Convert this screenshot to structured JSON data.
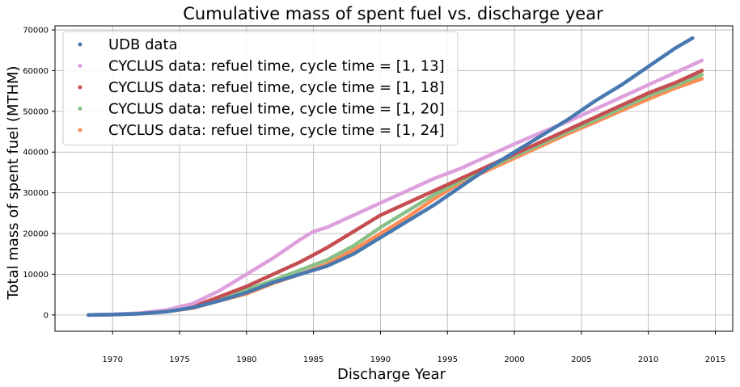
{
  "chart_data": {
    "type": "scatter",
    "title": "Cumulative mass of spent fuel vs. discharge year",
    "xlabel": "Discharge Year",
    "ylabel": "Total mass of spent fuel (MTHM)",
    "xlim": [
      1965.7,
      2016.3
    ],
    "ylim": [
      -4000,
      71000
    ],
    "xticks": [
      1970,
      1975,
      1980,
      1985,
      1990,
      1995,
      2000,
      2005,
      2010,
      2015
    ],
    "yticks": [
      0,
      10000,
      20000,
      30000,
      40000,
      50000,
      60000,
      70000
    ],
    "grid": true,
    "legend_position": "upper-left",
    "series": [
      {
        "name": "UDB data",
        "color": "#4878b0",
        "x": [
          1968.2,
          1970,
          1972,
          1974,
          1976,
          1978,
          1980,
          1982,
          1984,
          1986,
          1988,
          1990,
          1992,
          1994,
          1996,
          1998,
          2000,
          2002,
          2004,
          2006,
          2008,
          2010,
          2012,
          2013.3
        ],
        "y": [
          0,
          100,
          300,
          800,
          1800,
          3500,
          5500,
          8000,
          10000,
          12000,
          15000,
          19000,
          23000,
          27000,
          31500,
          36000,
          40000,
          44000,
          48000,
          52500,
          56500,
          61000,
          65500,
          68000
        ]
      },
      {
        "name": "CYCLUS data: refuel time, cycle time = [1, 13]",
        "color": "#dda0dd",
        "x": [
          1968.2,
          1970,
          1972,
          1974,
          1976,
          1978,
          1980,
          1982,
          1984,
          1985,
          1986,
          1988,
          1990,
          1992,
          1994,
          1996,
          1998,
          2000,
          2002,
          2004,
          2006,
          2008,
          2010,
          2012,
          2014
        ],
        "y": [
          0,
          150,
          450,
          1200,
          2800,
          6000,
          10000,
          14000,
          18500,
          20500,
          21500,
          24500,
          27500,
          30500,
          33500,
          36000,
          39000,
          42000,
          44800,
          47500,
          50500,
          53500,
          56500,
          59500,
          62500
        ]
      },
      {
        "name": "CYCLUS data: refuel time, cycle time = [1, 18]",
        "color": "#c44e52",
        "x": [
          1968.2,
          1970,
          1972,
          1974,
          1976,
          1978,
          1980,
          1982,
          1984,
          1986,
          1988,
          1990,
          1992,
          1994,
          1996,
          1998,
          2000,
          2002,
          2004,
          2006,
          2008,
          2010,
          2012,
          2014
        ],
        "y": [
          0,
          100,
          350,
          900,
          2000,
          4500,
          7000,
          10000,
          13000,
          16500,
          20500,
          24500,
          27500,
          30500,
          33500,
          36500,
          39500,
          42500,
          45500,
          48500,
          51500,
          54500,
          57000,
          60000
        ]
      },
      {
        "name": "CYCLUS data: refuel time, cycle time = [1, 20]",
        "color": "#88c088",
        "x": [
          1968.2,
          1970,
          1972,
          1974,
          1976,
          1978,
          1980,
          1982,
          1984,
          1986,
          1988,
          1990,
          1992,
          1994,
          1996,
          1998,
          2000,
          2002,
          2004,
          2006,
          2008,
          2010,
          2012,
          2014
        ],
        "y": [
          0,
          100,
          350,
          900,
          1900,
          4000,
          6200,
          8500,
          11000,
          13500,
          17000,
          21500,
          25500,
          29500,
          33000,
          36000,
          39000,
          42000,
          45000,
          47800,
          50800,
          53800,
          56300,
          59000
        ]
      },
      {
        "name": "CYCLUS data: refuel time, cycle time = [1, 24]",
        "color": "#ff8c55",
        "x": [
          1968.2,
          1970,
          1972,
          1974,
          1976,
          1978,
          1980,
          1982,
          1984,
          1986,
          1988,
          1990,
          1992,
          1994,
          1996,
          1998,
          2000,
          2002,
          2004,
          2006,
          2008,
          2010,
          2012,
          2014
        ],
        "y": [
          0,
          80,
          300,
          800,
          1700,
          3500,
          5200,
          7800,
          10000,
          12500,
          16000,
          20000,
          24000,
          28500,
          32500,
          35500,
          38500,
          41500,
          44500,
          47300,
          50200,
          53000,
          55700,
          58000
        ]
      }
    ]
  }
}
